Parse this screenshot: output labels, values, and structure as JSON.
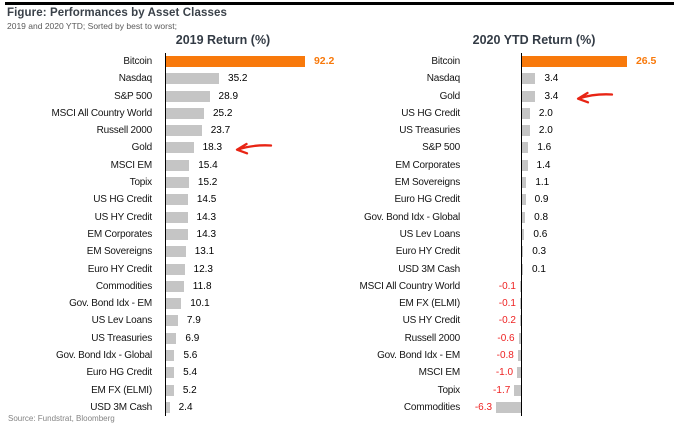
{
  "header": {
    "title": "Figure: Performances by Asset Classes",
    "subtitle": "2019 and 2020 YTD; Sorted by best to worst;"
  },
  "source": "Source: Fundstrat, Bloomberg",
  "colors": {
    "highlight_bar": "#F8790B",
    "highlight_text": "#F8790B",
    "bar": "#C5C5C5",
    "positive_text": "#000000",
    "negative_text": "#EE2222",
    "arrow": "#E82414",
    "axis": "#000000"
  },
  "chart_data": [
    {
      "type": "bar",
      "orientation": "horizontal",
      "title": "2019 Return (%)",
      "value_suffix": "",
      "categories": [
        "Bitcoin",
        "Nasdaq",
        "S&P 500",
        "MSCI All Country World",
        "Russell 2000",
        "Gold",
        "MSCI EM",
        "Topix",
        "US HG Credit",
        "US HY Credit",
        "EM Corporates",
        "EM Sovereigns",
        "Euro HY Credit",
        "Commodities",
        "Gov. Bond Idx - EM",
        "US Lev Loans",
        "US Treasuries",
        "Gov. Bond Idx - Global",
        "Euro HG Credit",
        "EM FX (ELMI)",
        "USD 3M Cash"
      ],
      "values": [
        92.2,
        35.2,
        28.9,
        25.2,
        23.7,
        18.3,
        15.4,
        15.2,
        14.5,
        14.3,
        14.3,
        13.1,
        12.3,
        11.8,
        10.1,
        7.9,
        6.9,
        5.6,
        5.4,
        5.2,
        2.4
      ],
      "highlight_category": "Bitcoin",
      "arrow_category": "Gold",
      "xlim": [
        0,
        100
      ],
      "grid": false,
      "legend": "none"
    },
    {
      "type": "bar",
      "orientation": "horizontal",
      "title": "2020 YTD Return (%)",
      "value_suffix": "",
      "categories": [
        "Bitcoin",
        "Nasdaq",
        "Gold",
        "US HG Credit",
        "US Treasuries",
        "S&P 500",
        "EM Corporates",
        "EM Sovereigns",
        "Euro HG Credit",
        "Gov. Bond Idx - Global",
        "US Lev Loans",
        "Euro HY Credit",
        "USD 3M Cash",
        "MSCI All Country World",
        "EM FX (ELMI)",
        "US HY Credit",
        "Russell 2000",
        "Gov. Bond Idx - EM",
        "MSCI EM",
        "Topix",
        "Commodities"
      ],
      "values": [
        26.5,
        3.4,
        3.4,
        2.0,
        2.0,
        1.6,
        1.4,
        1.1,
        0.9,
        0.8,
        0.6,
        0.3,
        0.1,
        -0.1,
        -0.1,
        -0.2,
        -0.6,
        -0.8,
        -1.0,
        -1.7,
        -6.3
      ],
      "highlight_category": "Bitcoin",
      "arrow_category": "Gold",
      "xlim": [
        -10,
        30
      ],
      "grid": false,
      "legend": "none"
    }
  ]
}
